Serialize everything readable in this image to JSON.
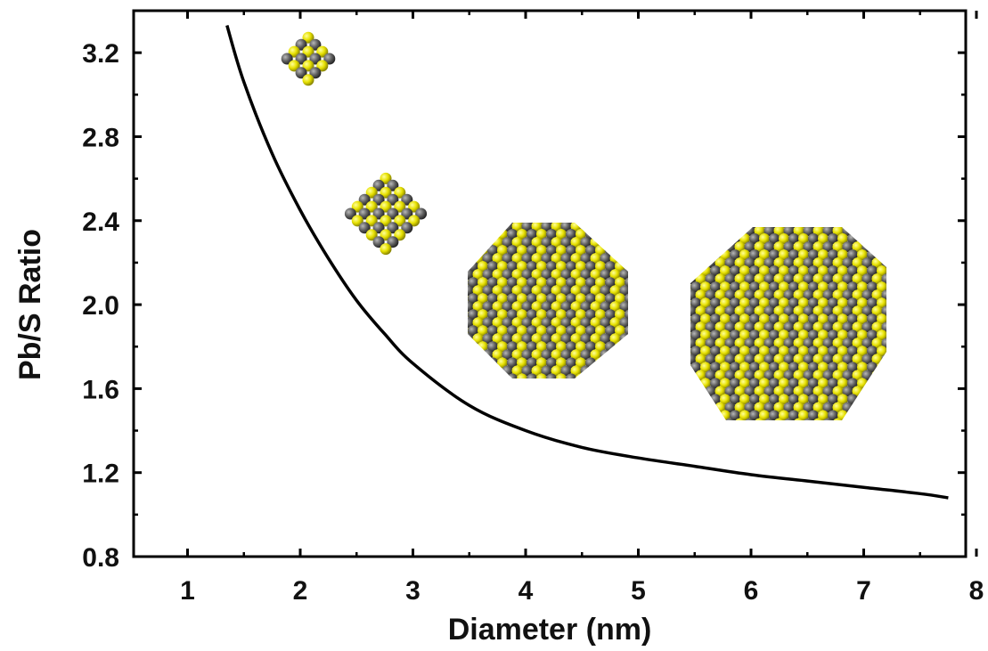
{
  "chart_data": {
    "type": "line",
    "title": "",
    "xlabel": "Diameter (nm)",
    "ylabel": "Pb/S Ratio",
    "xlim": [
      0.5,
      8
    ],
    "ylim": [
      0.8,
      3.4
    ],
    "x_ticks": [
      "1",
      "2",
      "3",
      "4",
      "5",
      "6",
      "7",
      "8"
    ],
    "y_ticks": [
      "0.8",
      "1.2",
      "1.6",
      "2.0",
      "2.4",
      "2.8",
      "3.2"
    ],
    "grid": false,
    "legend": "none",
    "series": [
      {
        "x": [
          1.35,
          1.5,
          1.75,
          2.0,
          2.25,
          2.5,
          2.75,
          3.0,
          3.5,
          4.0,
          4.5,
          5.0,
          5.5,
          6.0,
          6.5,
          7.0,
          7.5,
          7.75
        ],
        "y": [
          3.33,
          3.06,
          2.72,
          2.45,
          2.22,
          2.02,
          1.86,
          1.72,
          1.52,
          1.4,
          1.32,
          1.27,
          1.23,
          1.19,
          1.16,
          1.13,
          1.1,
          1.08
        ],
        "color": "#000000"
      }
    ],
    "insets": [
      {
        "name": "nanocrystal-1",
        "x": 2.05,
        "y": 3.15
      },
      {
        "name": "nanocrystal-2",
        "x": 2.8,
        "y": 2.4
      },
      {
        "name": "nanocrystal-3",
        "x": 4.3,
        "y": 2.0
      },
      {
        "name": "nanocrystal-4",
        "x": 6.6,
        "y": 1.9
      }
    ],
    "colors": {
      "sulfur": "#e6e000",
      "lead": "#555555",
      "line": "#000000"
    }
  }
}
